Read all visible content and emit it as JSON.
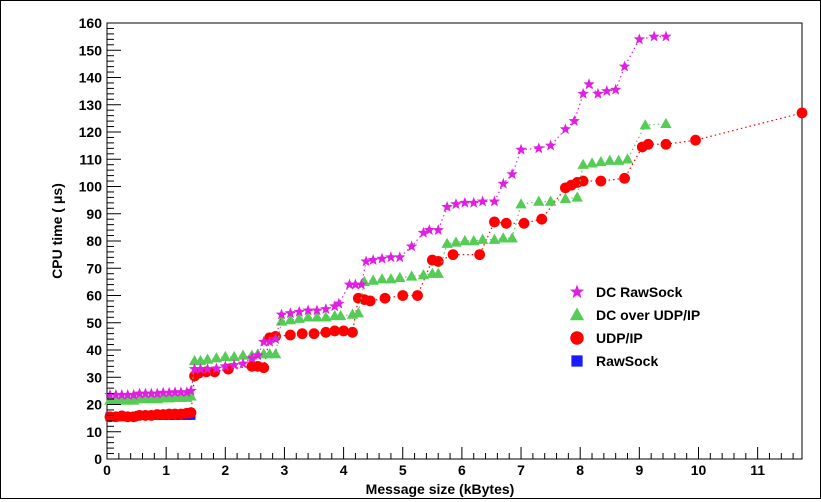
{
  "chart_data": {
    "type": "scatter",
    "xlabel": "Message size (kBytes)",
    "ylabel": "CPU time ( μs)",
    "xlim": [
      0,
      11.75
    ],
    "ylim": [
      0,
      160
    ],
    "xticks": [
      "0",
      "1",
      "2",
      "3",
      "4",
      "5",
      "6",
      "7",
      "8",
      "9",
      "10",
      "11"
    ],
    "yticks": [
      "0",
      "10",
      "20",
      "30",
      "40",
      "50",
      "60",
      "70",
      "80",
      "90",
      "100",
      "110",
      "120",
      "130",
      "140",
      "150",
      "160"
    ],
    "legend_position": "right",
    "grid": false,
    "series": [
      {
        "name": "DC RawSock",
        "marker": "star",
        "color": "#e020e0",
        "points": [
          [
            0.05,
            23.5
          ],
          [
            0.15,
            23.5
          ],
          [
            0.25,
            23.5
          ],
          [
            0.35,
            23.5
          ],
          [
            0.45,
            23.5
          ],
          [
            0.55,
            24
          ],
          [
            0.65,
            24
          ],
          [
            0.75,
            24
          ],
          [
            0.85,
            24
          ],
          [
            0.95,
            24.3
          ],
          [
            1.05,
            24.3
          ],
          [
            1.15,
            24.5
          ],
          [
            1.25,
            24.5
          ],
          [
            1.35,
            24.5
          ],
          [
            1.42,
            25
          ],
          [
            1.48,
            33
          ],
          [
            1.58,
            33
          ],
          [
            1.7,
            33
          ],
          [
            1.85,
            33.2
          ],
          [
            2.0,
            34
          ],
          [
            2.15,
            34.5
          ],
          [
            2.3,
            35
          ],
          [
            2.45,
            37
          ],
          [
            2.55,
            38
          ],
          [
            2.65,
            43
          ],
          [
            2.75,
            43
          ],
          [
            2.85,
            44
          ],
          [
            2.95,
            53
          ],
          [
            3.1,
            53.5
          ],
          [
            3.25,
            54
          ],
          [
            3.4,
            54.5
          ],
          [
            3.55,
            54.5
          ],
          [
            3.7,
            55
          ],
          [
            3.85,
            56
          ],
          [
            3.92,
            57
          ],
          [
            4.1,
            64
          ],
          [
            4.2,
            64
          ],
          [
            4.3,
            64
          ],
          [
            4.38,
            72.5
          ],
          [
            4.5,
            73
          ],
          [
            4.65,
            73.5
          ],
          [
            4.8,
            74
          ],
          [
            4.95,
            74
          ],
          [
            5.15,
            78
          ],
          [
            5.35,
            83
          ],
          [
            5.45,
            84
          ],
          [
            5.6,
            84
          ],
          [
            5.75,
            92.5
          ],
          [
            5.9,
            93.5
          ],
          [
            6.05,
            94
          ],
          [
            6.2,
            94
          ],
          [
            6.35,
            94.5
          ],
          [
            6.55,
            94.5
          ],
          [
            6.7,
            101
          ],
          [
            6.85,
            104.5
          ],
          [
            7.0,
            113.5
          ],
          [
            7.3,
            114
          ],
          [
            7.5,
            115
          ],
          [
            7.75,
            121
          ],
          [
            7.9,
            124
          ],
          [
            8.05,
            134
          ],
          [
            8.15,
            137.5
          ],
          [
            8.3,
            134
          ],
          [
            8.45,
            135
          ],
          [
            8.6,
            135.5
          ],
          [
            8.75,
            144
          ],
          [
            9.0,
            154
          ],
          [
            9.25,
            155
          ],
          [
            9.45,
            155
          ]
        ]
      },
      {
        "name": "DC over UDP/IP",
        "marker": "triangle",
        "color": "#55cc55",
        "points": [
          [
            0.05,
            21.5
          ],
          [
            0.15,
            21.5
          ],
          [
            0.25,
            21.5
          ],
          [
            0.35,
            21.5
          ],
          [
            0.45,
            21.5
          ],
          [
            0.55,
            22
          ],
          [
            0.65,
            22
          ],
          [
            0.75,
            22
          ],
          [
            0.85,
            22
          ],
          [
            0.95,
            22.3
          ],
          [
            1.05,
            22.3
          ],
          [
            1.15,
            22.5
          ],
          [
            1.25,
            22.5
          ],
          [
            1.35,
            22.5
          ],
          [
            1.42,
            23
          ],
          [
            1.48,
            36
          ],
          [
            1.58,
            36
          ],
          [
            1.7,
            36.5
          ],
          [
            1.85,
            37
          ],
          [
            2.0,
            37.5
          ],
          [
            2.15,
            37.5
          ],
          [
            2.3,
            38
          ],
          [
            2.45,
            38
          ],
          [
            2.55,
            38.5
          ],
          [
            2.65,
            38.5
          ],
          [
            2.75,
            38.5
          ],
          [
            2.85,
            38.5
          ],
          [
            2.95,
            50.5
          ],
          [
            3.1,
            51
          ],
          [
            3.25,
            51.5
          ],
          [
            3.4,
            52
          ],
          [
            3.55,
            52
          ],
          [
            3.7,
            52
          ],
          [
            3.85,
            52.5
          ],
          [
            3.95,
            52.5
          ],
          [
            4.15,
            53
          ],
          [
            4.25,
            53.5
          ],
          [
            4.35,
            65
          ],
          [
            4.5,
            65.5
          ],
          [
            4.65,
            66
          ],
          [
            4.8,
            66
          ],
          [
            4.95,
            66.5
          ],
          [
            5.15,
            67
          ],
          [
            5.35,
            67.5
          ],
          [
            5.5,
            68
          ],
          [
            5.6,
            68
          ],
          [
            5.75,
            79
          ],
          [
            5.9,
            79.5
          ],
          [
            6.05,
            80
          ],
          [
            6.2,
            80
          ],
          [
            6.35,
            80.5
          ],
          [
            6.55,
            80.5
          ],
          [
            6.7,
            81
          ],
          [
            6.85,
            81
          ],
          [
            7.0,
            93.5
          ],
          [
            7.3,
            94.5
          ],
          [
            7.5,
            94.5
          ],
          [
            7.75,
            95.5
          ],
          [
            7.95,
            96
          ],
          [
            8.05,
            108
          ],
          [
            8.2,
            108.5
          ],
          [
            8.35,
            109
          ],
          [
            8.5,
            109.5
          ],
          [
            8.65,
            109.5
          ],
          [
            8.8,
            110
          ],
          [
            9.1,
            122.5
          ],
          [
            9.45,
            123
          ]
        ]
      },
      {
        "name": "UDP/IP",
        "marker": "circle",
        "color": "#ff0000",
        "points": [
          [
            0.05,
            15.5
          ],
          [
            0.15,
            15.5
          ],
          [
            0.25,
            15.8
          ],
          [
            0.35,
            15.5
          ],
          [
            0.45,
            15.5
          ],
          [
            0.55,
            16
          ],
          [
            0.65,
            16
          ],
          [
            0.75,
            16
          ],
          [
            0.85,
            16.3
          ],
          [
            0.95,
            16.3
          ],
          [
            1.05,
            16.5
          ],
          [
            1.15,
            16.5
          ],
          [
            1.25,
            16.5
          ],
          [
            1.35,
            16.8
          ],
          [
            1.42,
            17
          ],
          [
            1.48,
            30.5
          ],
          [
            1.55,
            31.5
          ],
          [
            1.68,
            32
          ],
          [
            1.82,
            32
          ],
          [
            2.05,
            33
          ],
          [
            2.45,
            34
          ],
          [
            2.55,
            34
          ],
          [
            2.65,
            33.5
          ],
          [
            2.75,
            44.5
          ],
          [
            2.85,
            45
          ],
          [
            3.1,
            45.5
          ],
          [
            3.3,
            46
          ],
          [
            3.5,
            46
          ],
          [
            3.7,
            46.5
          ],
          [
            3.85,
            47
          ],
          [
            4.0,
            47
          ],
          [
            4.15,
            46.5
          ],
          [
            4.25,
            59
          ],
          [
            4.35,
            58.5
          ],
          [
            4.45,
            58
          ],
          [
            4.7,
            59
          ],
          [
            5.0,
            60
          ],
          [
            5.25,
            60
          ],
          [
            5.5,
            73
          ],
          [
            5.6,
            72.5
          ],
          [
            5.85,
            75
          ],
          [
            6.3,
            75
          ],
          [
            6.55,
            87
          ],
          [
            6.75,
            86.5
          ],
          [
            7.05,
            86.5
          ],
          [
            7.35,
            88
          ],
          [
            7.75,
            99.5
          ],
          [
            7.85,
            100.5
          ],
          [
            7.95,
            101.5
          ],
          [
            8.05,
            102
          ],
          [
            8.35,
            102
          ],
          [
            8.75,
            103
          ],
          [
            9.05,
            114.5
          ],
          [
            9.15,
            115.5
          ],
          [
            9.45,
            115.5
          ],
          [
            9.95,
            117
          ],
          [
            11.75,
            127
          ]
        ]
      },
      {
        "name": "RawSock",
        "marker": "square",
        "color": "#1a1aff",
        "points": [
          [
            0.05,
            15.5
          ],
          [
            0.15,
            15.5
          ],
          [
            0.25,
            15.5
          ],
          [
            0.35,
            15.5
          ],
          [
            0.45,
            15.5
          ],
          [
            0.55,
            16
          ],
          [
            0.65,
            16
          ],
          [
            0.75,
            16
          ],
          [
            0.85,
            16
          ],
          [
            0.95,
            16
          ],
          [
            1.05,
            16
          ],
          [
            1.15,
            16
          ],
          [
            1.25,
            16
          ],
          [
            1.35,
            16
          ],
          [
            1.42,
            16
          ]
        ]
      }
    ]
  }
}
